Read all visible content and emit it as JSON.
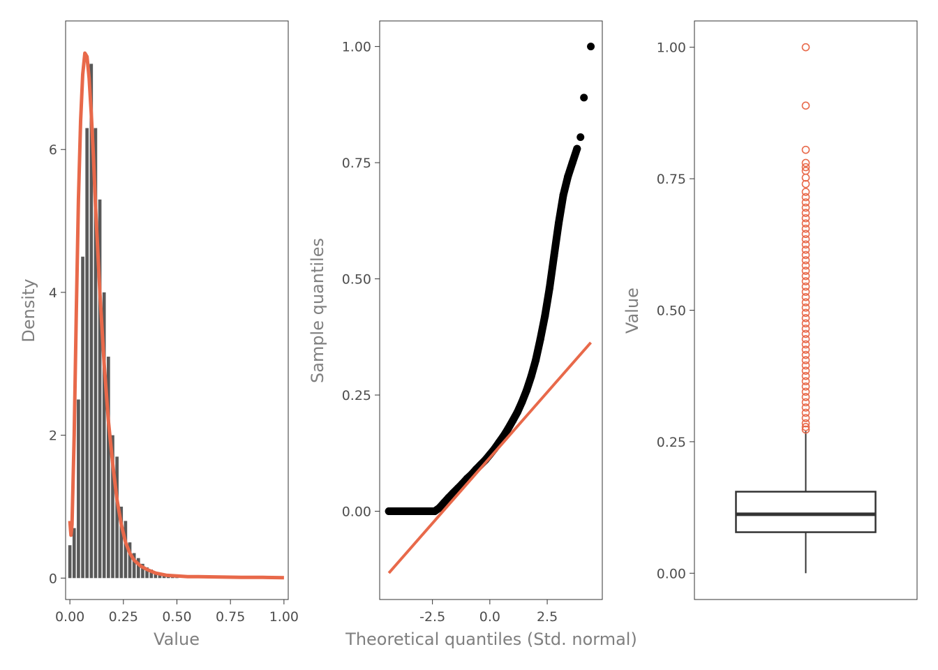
{
  "colors": {
    "accent": "#e8694a",
    "bar": "#595959",
    "point": "#000000",
    "panel_border": "#333333",
    "tick_text": "#4d4d4d",
    "axis_title": "#7f7f7f"
  },
  "chart_data": [
    {
      "type": "bar",
      "subtype": "histogram_with_density",
      "xlabel": "Value",
      "ylabel": "Density",
      "xlim": [
        -0.02,
        1.02
      ],
      "ylim": [
        -0.3,
        7.8
      ],
      "x_ticks": [
        0,
        0.25,
        0.5,
        0.75,
        1
      ],
      "x_tick_labels": [
        "0.00",
        "0.25",
        "0.50",
        "0.75",
        "1.00"
      ],
      "y_ticks": [
        0,
        2,
        4,
        6
      ],
      "y_tick_labels": [
        "0",
        "2",
        "4",
        "6"
      ],
      "bin_width": 0.02,
      "bins": [
        {
          "x": 0.0,
          "density": 0.46
        },
        {
          "x": 0.02,
          "density": 0.7
        },
        {
          "x": 0.04,
          "density": 2.5
        },
        {
          "x": 0.06,
          "density": 4.5
        },
        {
          "x": 0.08,
          "density": 6.3
        },
        {
          "x": 0.1,
          "density": 7.2
        },
        {
          "x": 0.12,
          "density": 6.3
        },
        {
          "x": 0.14,
          "density": 5.3
        },
        {
          "x": 0.16,
          "density": 4.0
        },
        {
          "x": 0.18,
          "density": 3.1
        },
        {
          "x": 0.2,
          "density": 2.0
        },
        {
          "x": 0.22,
          "density": 1.7
        },
        {
          "x": 0.24,
          "density": 1.0
        },
        {
          "x": 0.26,
          "density": 0.8
        },
        {
          "x": 0.28,
          "density": 0.5
        },
        {
          "x": 0.3,
          "density": 0.35
        },
        {
          "x": 0.32,
          "density": 0.28
        },
        {
          "x": 0.34,
          "density": 0.2
        },
        {
          "x": 0.36,
          "density": 0.15
        },
        {
          "x": 0.38,
          "density": 0.12
        },
        {
          "x": 0.4,
          "density": 0.08
        },
        {
          "x": 0.42,
          "density": 0.06
        },
        {
          "x": 0.44,
          "density": 0.04
        },
        {
          "x": 0.46,
          "density": 0.03
        },
        {
          "x": 0.48,
          "density": 0.02
        },
        {
          "x": 0.5,
          "density": 0.015
        }
      ],
      "density_curve": {
        "x": [
          0.0,
          0.005,
          0.01,
          0.02,
          0.03,
          0.04,
          0.05,
          0.06,
          0.07,
          0.08,
          0.09,
          0.1,
          0.11,
          0.12,
          0.13,
          0.14,
          0.16,
          0.18,
          0.2,
          0.22,
          0.24,
          0.26,
          0.28,
          0.3,
          0.33,
          0.36,
          0.4,
          0.45,
          0.5,
          0.55,
          0.6,
          0.7,
          0.8,
          0.9,
          1.0
        ],
        "y": [
          0.8,
          0.6,
          0.75,
          2.0,
          3.7,
          5.3,
          6.4,
          7.05,
          7.35,
          7.3,
          7.0,
          6.5,
          5.9,
          5.2,
          4.6,
          4.0,
          3.0,
          2.2,
          1.6,
          1.1,
          0.75,
          0.5,
          0.35,
          0.25,
          0.17,
          0.12,
          0.07,
          0.04,
          0.03,
          0.02,
          0.02,
          0.015,
          0.01,
          0.01,
          0.005
        ]
      }
    },
    {
      "type": "scatter",
      "subtype": "qq_plot",
      "xlabel": "Theoretical quantiles (Std. normal)",
      "ylabel": "Sample quantiles",
      "xlim": [
        -4.8,
        4.9
      ],
      "ylim": [
        -0.19,
        1.055
      ],
      "x_ticks": [
        -2.5,
        0,
        2.5
      ],
      "x_tick_labels": [
        "-2.5",
        "0.0",
        "2.5"
      ],
      "y_ticks": [
        0,
        0.25,
        0.5,
        0.75,
        1
      ],
      "y_tick_labels": [
        "0.00",
        "0.25",
        "0.50",
        "0.75",
        "1.00"
      ],
      "points": [
        {
          "x": -4.4,
          "y": 0.0
        },
        {
          "x": -4.2,
          "y": 0.0
        },
        {
          "x": -4.0,
          "y": 0.0
        },
        {
          "x": -3.8,
          "y": 0.0
        },
        {
          "x": -3.6,
          "y": 0.0
        },
        {
          "x": -3.4,
          "y": 0.0
        },
        {
          "x": -3.2,
          "y": 0.0
        },
        {
          "x": -3.0,
          "y": 0.0
        },
        {
          "x": -2.8,
          "y": 0.0
        },
        {
          "x": -2.6,
          "y": 0.0
        },
        {
          "x": -2.4,
          "y": 0.0
        },
        {
          "x": -2.2,
          "y": 0.007
        },
        {
          "x": -2.0,
          "y": 0.018
        },
        {
          "x": -1.8,
          "y": 0.029
        },
        {
          "x": -1.6,
          "y": 0.039
        },
        {
          "x": -1.4,
          "y": 0.049
        },
        {
          "x": -1.2,
          "y": 0.059
        },
        {
          "x": -1.0,
          "y": 0.07
        },
        {
          "x": -0.8,
          "y": 0.079
        },
        {
          "x": -0.6,
          "y": 0.09
        },
        {
          "x": -0.4,
          "y": 0.1
        },
        {
          "x": -0.2,
          "y": 0.11
        },
        {
          "x": 0.0,
          "y": 0.122
        },
        {
          "x": 0.2,
          "y": 0.134
        },
        {
          "x": 0.4,
          "y": 0.148
        },
        {
          "x": 0.6,
          "y": 0.162
        },
        {
          "x": 0.8,
          "y": 0.178
        },
        {
          "x": 1.0,
          "y": 0.195
        },
        {
          "x": 1.2,
          "y": 0.213
        },
        {
          "x": 1.4,
          "y": 0.235
        },
        {
          "x": 1.6,
          "y": 0.26
        },
        {
          "x": 1.8,
          "y": 0.29
        },
        {
          "x": 2.0,
          "y": 0.325
        },
        {
          "x": 2.2,
          "y": 0.37
        },
        {
          "x": 2.4,
          "y": 0.42
        },
        {
          "x": 2.6,
          "y": 0.48
        },
        {
          "x": 2.8,
          "y": 0.55
        },
        {
          "x": 3.0,
          "y": 0.62
        },
        {
          "x": 3.2,
          "y": 0.68
        },
        {
          "x": 3.4,
          "y": 0.72
        },
        {
          "x": 3.6,
          "y": 0.75
        },
        {
          "x": 3.8,
          "y": 0.78
        },
        {
          "x": 3.95,
          "y": 0.805
        },
        {
          "x": 4.1,
          "y": 0.89
        },
        {
          "x": 4.4,
          "y": 1.0
        }
      ],
      "reference_line": {
        "x": [
          -4.4,
          4.4
        ],
        "y": [
          -0.133,
          0.363
        ]
      }
    },
    {
      "type": "box",
      "ylabel": "Value",
      "ylim": [
        -0.05,
        1.05
      ],
      "y_ticks": [
        0,
        0.25,
        0.5,
        0.75,
        1
      ],
      "y_tick_labels": [
        "0.00",
        "0.25",
        "0.50",
        "0.75",
        "1.00"
      ],
      "min": 0.0,
      "q1": 0.078,
      "median": 0.112,
      "q3": 0.155,
      "whisker_high": 0.27,
      "outliers": [
        1.0,
        0.889,
        0.805,
        0.78,
        0.772,
        0.765,
        0.752,
        0.74,
        0.725,
        0.715,
        0.705,
        0.695,
        0.685,
        0.675,
        0.665,
        0.655,
        0.645,
        0.635,
        0.625,
        0.615,
        0.605,
        0.595,
        0.585,
        0.575,
        0.565,
        0.555,
        0.545,
        0.535,
        0.525,
        0.515,
        0.505,
        0.495,
        0.485,
        0.475,
        0.465,
        0.455,
        0.445,
        0.435,
        0.425,
        0.415,
        0.405,
        0.395,
        0.385,
        0.375,
        0.365,
        0.355,
        0.345,
        0.335,
        0.325,
        0.315,
        0.305,
        0.295,
        0.285,
        0.278,
        0.273
      ]
    }
  ]
}
